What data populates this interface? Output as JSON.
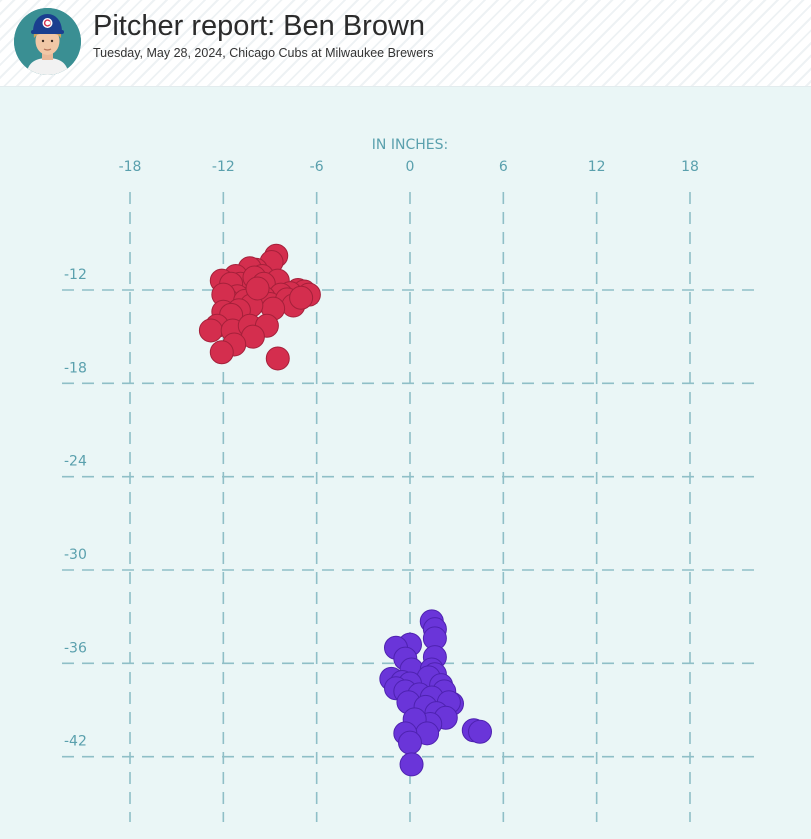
{
  "header": {
    "title": "Pitcher report: Ben Brown",
    "subtitle": "Tuesday, May 28, 2024, Chicago Cubs at Milwaukee Brewers"
  },
  "colors": {
    "background": "#eaf6f6",
    "grid": "#8fbfc7",
    "tick_text": "#5aa0ad",
    "red_series": "#d42e4e",
    "red_stroke": "#a5203a",
    "purple_series": "#6a35d9",
    "purple_stroke": "#4e22b0",
    "cap": "#1a3f8f",
    "avatar_bg": "#3a8f93"
  },
  "icons": {
    "avatar": "player-headshot"
  },
  "chart_data": {
    "type": "scatter",
    "title": "",
    "xlabel": "IN INCHES:",
    "ylabel": "",
    "xlim": [
      -22,
      23
    ],
    "ylim": [
      -46,
      -7
    ],
    "x_ticks": [
      -18,
      -12,
      -6,
      0,
      6,
      12,
      18
    ],
    "y_ticks": [
      -12,
      -18,
      -24,
      -30,
      -36,
      -42
    ],
    "grid": true,
    "series": [
      {
        "color": "#d42e4e",
        "points": [
          [
            -8.6,
            -9.8
          ],
          [
            -8.9,
            -10.2
          ],
          [
            -9.9,
            -10.7
          ],
          [
            -10.3,
            -10.6
          ],
          [
            -9.5,
            -11.1
          ],
          [
            -11.2,
            -11.1
          ],
          [
            -10.9,
            -11.6
          ],
          [
            -10.0,
            -11.2
          ],
          [
            -12.1,
            -11.4
          ],
          [
            -11.5,
            -11.6
          ],
          [
            -8.5,
            -11.4
          ],
          [
            -9.4,
            -11.6
          ],
          [
            -7.2,
            -12.0
          ],
          [
            -6.8,
            -12.1
          ],
          [
            -6.5,
            -12.3
          ],
          [
            -7.7,
            -12.2
          ],
          [
            -8.3,
            -12.3
          ],
          [
            -9.4,
            -12.5
          ],
          [
            -10.1,
            -12.4
          ],
          [
            -11.1,
            -12.4
          ],
          [
            -11.8,
            -12.6
          ],
          [
            -12.0,
            -12.3
          ],
          [
            -10.6,
            -12.7
          ],
          [
            -9.0,
            -12.9
          ],
          [
            -7.9,
            -12.6
          ],
          [
            -7.5,
            -13.0
          ],
          [
            -8.8,
            -13.2
          ],
          [
            -10.2,
            -13.0
          ],
          [
            -11.0,
            -13.3
          ],
          [
            -12.0,
            -13.4
          ],
          [
            -11.5,
            -13.6
          ],
          [
            -12.4,
            -14.3
          ],
          [
            -12.8,
            -14.6
          ],
          [
            -11.4,
            -14.6
          ],
          [
            -10.3,
            -14.3
          ],
          [
            -9.2,
            -14.3
          ],
          [
            -10.1,
            -15.0
          ],
          [
            -11.3,
            -15.5
          ],
          [
            -12.1,
            -16.0
          ],
          [
            -8.5,
            -16.4
          ],
          [
            -9.8,
            -11.9
          ],
          [
            -7.0,
            -12.5
          ]
        ]
      },
      {
        "color": "#6a35d9",
        "points": [
          [
            1.4,
            -33.3
          ],
          [
            1.6,
            -33.8
          ],
          [
            1.6,
            -34.4
          ],
          [
            0.0,
            -34.8
          ],
          [
            -0.9,
            -35.0
          ],
          [
            1.6,
            -35.6
          ],
          [
            -0.3,
            -35.7
          ],
          [
            0.1,
            -36.4
          ],
          [
            1.4,
            -36.4
          ],
          [
            1.6,
            -36.7
          ],
          [
            1.2,
            -36.9
          ],
          [
            -1.2,
            -37.0
          ],
          [
            -0.5,
            -37.2
          ],
          [
            0.0,
            -37.3
          ],
          [
            -0.9,
            -37.6
          ],
          [
            2.0,
            -37.4
          ],
          [
            2.2,
            -37.8
          ],
          [
            -0.3,
            -37.8
          ],
          [
            0.6,
            -38.0
          ],
          [
            1.4,
            -38.2
          ],
          [
            -0.1,
            -38.5
          ],
          [
            2.7,
            -38.6
          ],
          [
            2.5,
            -38.5
          ],
          [
            1.0,
            -38.8
          ],
          [
            1.7,
            -39.2
          ],
          [
            2.3,
            -39.5
          ],
          [
            1.3,
            -39.9
          ],
          [
            0.3,
            -39.6
          ],
          [
            4.1,
            -40.3
          ],
          [
            4.5,
            -40.4
          ],
          [
            1.1,
            -40.5
          ],
          [
            -0.3,
            -40.5
          ],
          [
            0.0,
            -41.1
          ],
          [
            0.1,
            -42.5
          ]
        ]
      }
    ]
  }
}
